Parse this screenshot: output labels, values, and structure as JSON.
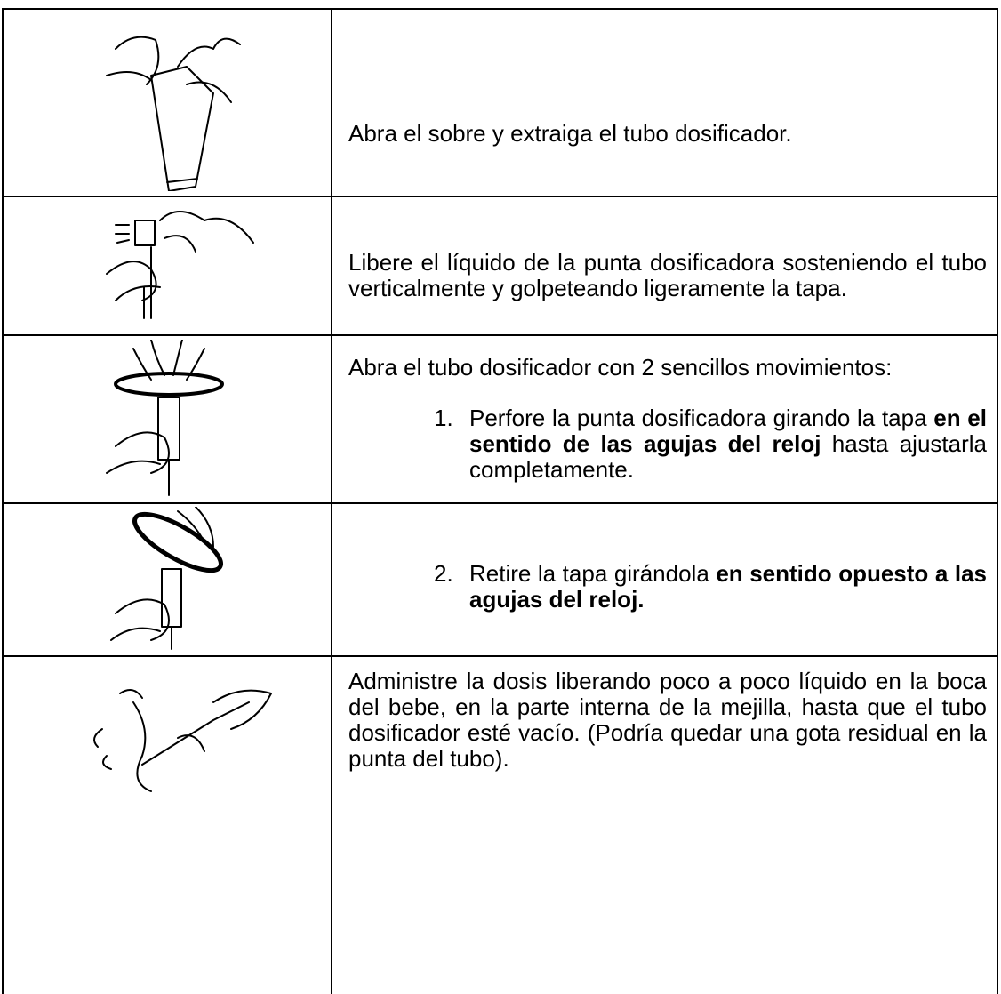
{
  "rows": [
    {
      "text": "Abra el sobre y extraiga el tubo dosificador."
    },
    {
      "text": "Libere el líquido de la punta dosificadora sosteniendo el tubo verticalmente y golpeteando ligeramente la tapa."
    },
    {
      "text": "Abra el tubo dosificador con 2 sencillos movimientos:",
      "item": {
        "number": "1.",
        "parts": [
          "Perfore la punta dosificadora girando la tapa ",
          "en el sentido de las agujas del reloj",
          " hasta ajustarla completamente."
        ]
      }
    },
    {
      "item": {
        "number": "2.",
        "parts": [
          "Retire la tapa girándola ",
          "en sentido opuesto a las agujas del reloj."
        ]
      }
    },
    {
      "text": "Administre la dosis liberando poco a poco líquido en la boca del bebe, en la parte interna de la mejilla, hasta que el tubo dosificador esté vacío. (Podría quedar una gota residual en la punta del tubo)."
    }
  ]
}
